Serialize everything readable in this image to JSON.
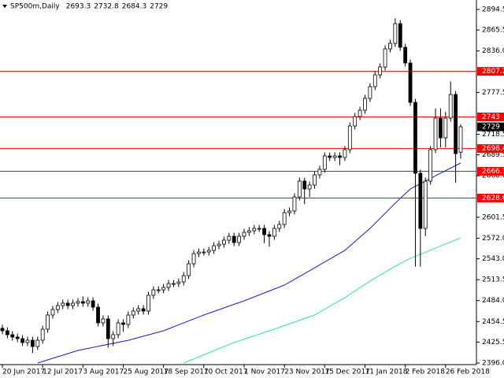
{
  "chart_data": {
    "type": "candlestick",
    "title": "SP500m,Daily",
    "up_color": "#ffffff",
    "down_color": "#000000",
    "outline_color": "#000000",
    "xlim": [
      0,
      91
    ],
    "xticks": [
      {
        "value": 0,
        "label": "20 Jun 2017"
      },
      {
        "value": 8,
        "label": "12 Jul 2017"
      },
      {
        "value": 16,
        "label": "3 Aug 2017"
      },
      {
        "value": 24,
        "label": "25 Aug 2017"
      },
      {
        "value": 32,
        "label": "18 Sep 2017"
      },
      {
        "value": 40,
        "label": "10 Oct 2017"
      },
      {
        "value": 48,
        "label": "1 Nov 2017"
      },
      {
        "value": 56,
        "label": "23 Nov 2017"
      },
      {
        "value": 64,
        "label": "15 Dec 2017"
      },
      {
        "value": 72,
        "label": "11 Jan 2018"
      },
      {
        "value": 80,
        "label": "2 Feb 2018"
      },
      {
        "value": 88,
        "label": "26 Feb 2018"
      }
    ],
    "ylim": [
      2396.0,
      2894.5
    ],
    "yticks": [
      {
        "value": 2396,
        "label": "2396.0"
      },
      2425.5,
      2454.5,
      {
        "value": 2484,
        "label": "2484.0"
      },
      2513.5,
      {
        "value": 2543,
        "label": "2543.0"
      },
      {
        "value": 2572,
        "label": "2572.0"
      },
      2601.5,
      {
        "value": 2660,
        "label": "2660.0"
      },
      2689.5,
      2718.5,
      2777.5,
      {
        "value": 2836,
        "label": "2836.0"
      },
      2865.5,
      2894.5
    ],
    "open": [
      2445.0,
      2441.5,
      2436.0,
      2432.6,
      2430.4,
      2424.9,
      2428.2,
      2419.3,
      2428.2,
      2443.7,
      2463.7,
      2471.5,
      2477.0,
      2480.4,
      2477.0,
      2480.4,
      2482.6,
      2480.4,
      2483.7,
      2474.8,
      2452.6,
      2458.2,
      2430.4,
      2436.0,
      2452.6,
      2450.4,
      2463.7,
      2469.3,
      2472.6,
      2469.3,
      2491.5,
      2499.2,
      2499.2,
      2502.6,
      2508.1,
      2508.1,
      2510.3,
      2519.2,
      2535.9,
      2550.3,
      2552.5,
      2552.5,
      2554.8,
      2561.4,
      2563.6,
      2569.2,
      2574.7,
      2565.9,
      2574.7,
      2580.3,
      2582.5,
      2585.8,
      2585.8,
      2577.0,
      2574.7,
      2585.8,
      2591.4,
      2608.0,
      2610.3,
      2630.2,
      2652.5,
      2641.4,
      2646.9,
      2661.3,
      2669.1,
      2688.0,
      2685.8,
      2688.0,
      2685.8,
      2696.9,
      2730.2,
      2743.5,
      2752.4,
      2769.1,
      2785.7,
      2802.3,
      2813.4,
      2839.0,
      2846.7,
      2874.5,
      2841.2,
      2819.0,
      2763.5,
      2663.6,
      2585.8,
      2652.5,
      2696.9,
      2741.3,
      2713.5,
      2741.3,
      2774.6,
      2693.3
    ],
    "high": [
      2450.0,
      2446.5,
      2441.0,
      2437.6,
      2435.4,
      2433.2,
      2433.2,
      2433.2,
      2448.7,
      2468.7,
      2476.5,
      2482.0,
      2485.4,
      2485.4,
      2485.4,
      2487.6,
      2490.0,
      2488.7,
      2488.7,
      2479.8,
      2463.2,
      2463.2,
      2441.0,
      2457.6,
      2457.6,
      2468.7,
      2474.3,
      2477.6,
      2477.6,
      2496.5,
      2504.2,
      2504.2,
      2507.6,
      2513.1,
      2513.1,
      2515.3,
      2524.2,
      2540.9,
      2555.3,
      2557.5,
      2557.5,
      2559.8,
      2566.4,
      2568.6,
      2574.2,
      2579.7,
      2579.7,
      2579.7,
      2585.3,
      2587.5,
      2590.8,
      2590.8,
      2590.8,
      2582.0,
      2590.8,
      2596.4,
      2613.0,
      2615.3,
      2635.2,
      2657.5,
      2657.5,
      2651.9,
      2666.3,
      2674.1,
      2693.0,
      2693.0,
      2693.0,
      2693.0,
      2701.9,
      2735.2,
      2748.5,
      2757.4,
      2774.1,
      2790.7,
      2807.3,
      2818.4,
      2844.0,
      2851.7,
      2882.0,
      2879.5,
      2846.2,
      2824.0,
      2768.5,
      2668.6,
      2657.5,
      2701.9,
      2755.0,
      2755.0,
      2750.0,
      2793.0,
      2779.6,
      2732.8
    ],
    "low": [
      2436.5,
      2431.0,
      2427.6,
      2425.4,
      2419.9,
      2419.9,
      2410.0,
      2414.3,
      2423.2,
      2438.7,
      2458.7,
      2466.5,
      2472.0,
      2472.0,
      2472.0,
      2475.4,
      2475.4,
      2475.4,
      2469.8,
      2447.6,
      2447.6,
      2418.0,
      2420.0,
      2431.0,
      2440.0,
      2445.4,
      2458.7,
      2464.3,
      2464.3,
      2464.3,
      2486.5,
      2494.2,
      2494.2,
      2497.6,
      2503.1,
      2503.1,
      2505.3,
      2514.2,
      2530.9,
      2545.3,
      2547.5,
      2547.5,
      2549.8,
      2556.4,
      2558.6,
      2564.2,
      2560.9,
      2560.9,
      2569.7,
      2575.3,
      2577.5,
      2580.8,
      2565.0,
      2560.0,
      2569.7,
      2580.8,
      2586.4,
      2603.0,
      2605.3,
      2625.2,
      2620.0,
      2630.0,
      2641.9,
      2656.3,
      2664.1,
      2680.8,
      2680.8,
      2675.0,
      2680.8,
      2691.9,
      2725.2,
      2738.5,
      2747.4,
      2764.1,
      2780.7,
      2797.3,
      2808.4,
      2834.0,
      2841.7,
      2836.2,
      2814.0,
      2758.5,
      2532.0,
      2532.0,
      2575.0,
      2647.5,
      2691.9,
      2700.0,
      2700.0,
      2736.3,
      2650.0,
      2684.3
    ],
    "close": [
      2441.5,
      2436.0,
      2432.6,
      2430.4,
      2424.9,
      2428.2,
      2419.3,
      2428.2,
      2443.7,
      2463.7,
      2471.5,
      2477.0,
      2480.4,
      2477.0,
      2480.4,
      2482.6,
      2480.4,
      2483.7,
      2474.8,
      2452.6,
      2458.2,
      2430.4,
      2436.0,
      2452.6,
      2450.4,
      2463.7,
      2469.3,
      2472.6,
      2469.3,
      2491.5,
      2499.2,
      2499.2,
      2502.6,
      2508.1,
      2508.1,
      2510.3,
      2519.2,
      2535.9,
      2550.3,
      2552.5,
      2552.5,
      2554.8,
      2561.4,
      2563.6,
      2569.2,
      2574.7,
      2565.9,
      2574.7,
      2580.3,
      2582.5,
      2585.8,
      2585.8,
      2577.0,
      2574.7,
      2585.8,
      2591.4,
      2608.0,
      2610.3,
      2630.2,
      2652.5,
      2641.4,
      2646.9,
      2661.3,
      2669.1,
      2688.0,
      2685.8,
      2688.0,
      2685.8,
      2696.9,
      2730.2,
      2743.5,
      2752.4,
      2769.1,
      2785.7,
      2802.3,
      2813.4,
      2839.0,
      2846.7,
      2874.5,
      2841.2,
      2819.0,
      2763.5,
      2663.6,
      2585.8,
      2652.5,
      2696.9,
      2741.3,
      2713.5,
      2741.3,
      2774.6,
      2691.3,
      2729.0
    ],
    "lines": [
      {
        "color": "#1a1acc",
        "x": [
          7,
          15,
          25,
          32,
          40,
          48,
          56,
          62,
          68,
          73,
          78,
          81,
          84,
          87,
          91
        ],
        "values": [
          2396.0,
          2413.8,
          2428.1,
          2441.5,
          2463.7,
          2483.7,
          2505.9,
          2530.3,
          2554.8,
          2585.9,
          2621.4,
          2641.4,
          2652.5,
          2663.6,
          2678.0
        ]
      },
      {
        "color": "#2de0b0",
        "x": [
          36,
          46,
          54,
          62,
          68,
          73,
          78,
          81,
          86,
          91
        ],
        "values": [
          2396.0,
          2424.9,
          2443.7,
          2463.7,
          2488.1,
          2511.5,
          2532.5,
          2543.6,
          2558.0,
          2572.5
        ]
      }
    ],
    "hline_color": "#ff0000",
    "hlines": [
      2807.2,
      2743.0,
      2698.4,
      2666.3,
      2628.6
    ]
  }
}
